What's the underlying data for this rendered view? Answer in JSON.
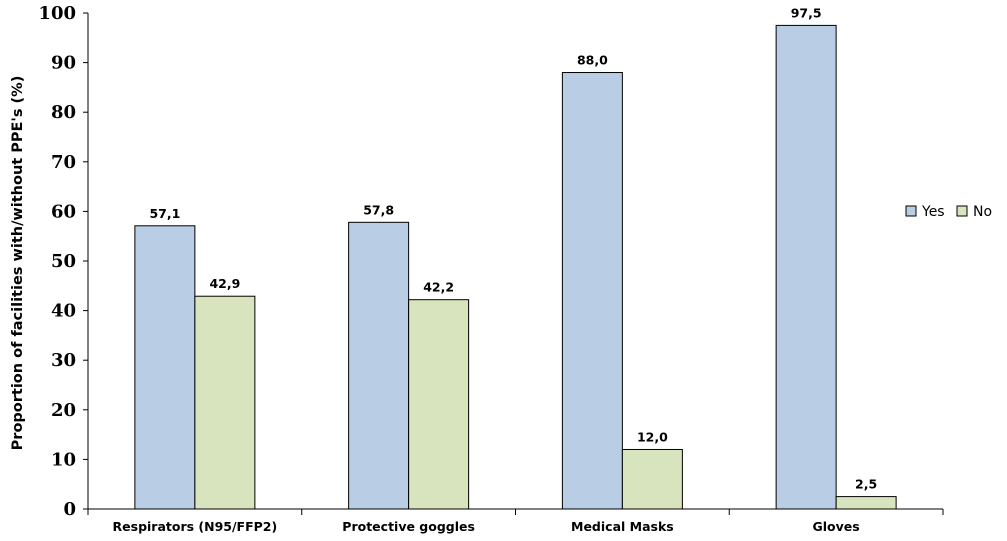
{
  "chart_data": {
    "type": "bar",
    "title": "",
    "xlabel": "",
    "ylabel": "Proportion of facilities with/without PPE's (%)",
    "ylim": [
      0,
      100
    ],
    "yticks": [
      "0",
      "10",
      "20",
      "30",
      "40",
      "50",
      "60",
      "70",
      "80",
      "90",
      "100"
    ],
    "categories": [
      "Respirators (N95/FFP2)",
      "Protective goggles",
      "Medical Masks",
      "Gloves"
    ],
    "series": [
      {
        "name": "Yes",
        "color": "#b9cde5",
        "values": [
          57.1,
          57.8,
          88.0,
          97.5
        ],
        "labels": [
          "57,1",
          "57,8",
          "88,0",
          "97,5"
        ]
      },
      {
        "name": "No",
        "color": "#d7e4bd",
        "values": [
          42.9,
          42.2,
          12.0,
          2.5
        ],
        "labels": [
          "42,9",
          "42,2",
          "12,0",
          "2,5"
        ]
      }
    ],
    "grid": false,
    "legend": "right"
  }
}
